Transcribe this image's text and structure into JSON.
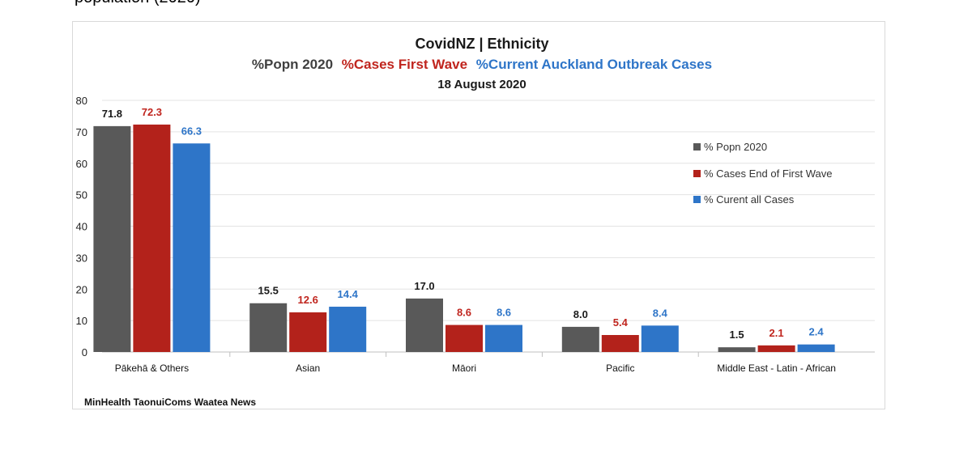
{
  "top_fragment": "population (2020)",
  "source": "MinHealth TaonuiComs Waatea News",
  "chart_data": {
    "type": "bar",
    "title": "CovidNZ | Ethnicity",
    "subtitle_parts": [
      {
        "text": "%Popn 2020",
        "color": "#404040"
      },
      {
        "text": "%Cases First Wave",
        "color": "#c0251e"
      },
      {
        "text": "%Current Auckland Outbreak Cases",
        "color": "#2e75c8"
      }
    ],
    "date": "18 August 2020",
    "categories": [
      "Pākehā  & Others",
      "Asian",
      "Māori",
      "Pacific",
      "Middle East - Latin - African"
    ],
    "series": [
      {
        "name": "% Popn 2020",
        "color": "#595959",
        "label_color": "#1a1a1a",
        "values": [
          71.8,
          15.5,
          17.0,
          8.0,
          1.5
        ]
      },
      {
        "name": "% Cases End of First Wave",
        "color": "#b3221b",
        "label_color": "#c0251e",
        "values": [
          72.3,
          12.6,
          8.6,
          5.4,
          2.1
        ]
      },
      {
        "name": "% Curent all Cases",
        "color": "#2e75c8",
        "label_color": "#2e75c8",
        "values": [
          66.3,
          14.4,
          8.6,
          8.4,
          2.4
        ]
      }
    ],
    "value_labels": [
      [
        "71.8",
        "15.5",
        "17.0",
        "8.0",
        "1.5"
      ],
      [
        "72.3",
        "12.6",
        "8.6",
        "5.4",
        "2.1"
      ],
      [
        "66.3",
        "14.4",
        "8.6",
        "8.4",
        "2.4"
      ]
    ],
    "yticks": [
      0,
      10,
      20,
      30,
      40,
      50,
      60,
      70,
      80
    ],
    "ylim": [
      0,
      80
    ],
    "grid": true,
    "legend_position": "right"
  }
}
